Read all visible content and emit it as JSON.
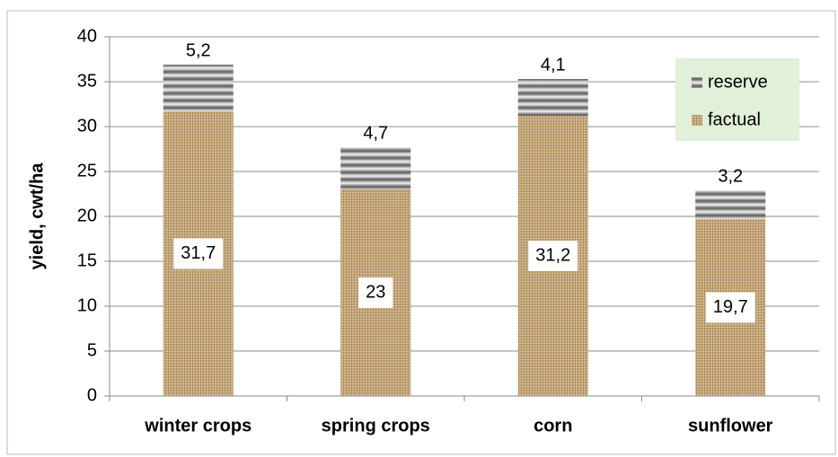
{
  "chart_data": {
    "type": "stacked_bar",
    "y_label": "yield, cwt/ha",
    "categories": [
      "winter crops",
      "spring crops",
      "corn",
      "sunflower"
    ],
    "series": [
      {
        "name": "factual",
        "color": "#c4a574",
        "values": [
          31.7,
          23,
          31.2,
          19.7
        ],
        "value_labels": [
          "31,7",
          "23",
          "31,2",
          "19,7"
        ]
      },
      {
        "name": "reserve",
        "color": "#5a5a5a",
        "values": [
          5.2,
          4.7,
          4.1,
          3.2
        ],
        "value_labels": [
          "5,2",
          "4,7",
          "4,1",
          "3,2"
        ]
      }
    ],
    "ylim": [
      0,
      40
    ],
    "yticks": [
      0,
      5,
      10,
      15,
      20,
      25,
      30,
      35,
      40
    ],
    "grid": true,
    "legend": "upper right"
  }
}
